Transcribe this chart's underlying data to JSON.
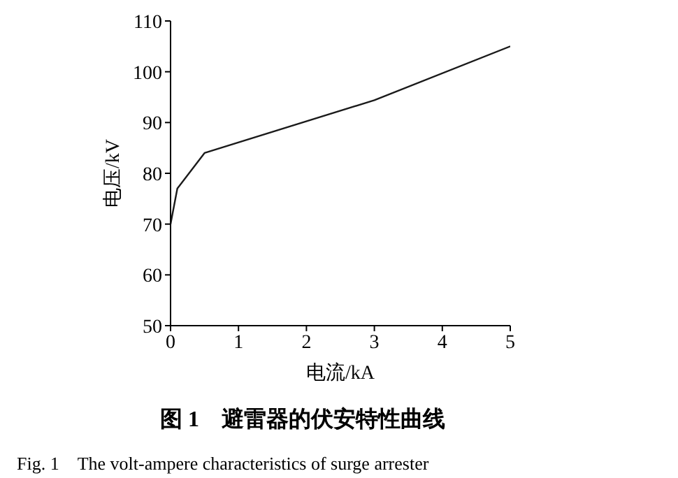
{
  "chart_data": {
    "type": "line",
    "title": "图 1　避雷器的伏安特性曲线",
    "subtitle": "Fig. 1　The volt-ampere characteristics of surge arrester",
    "xlabel": "电流/kA",
    "ylabel": "电压/kV",
    "x": [
      0,
      0.1,
      0.5,
      3,
      5
    ],
    "series": [
      {
        "color": "#1a1a1a",
        "values": [
          70,
          77,
          84,
          94.4,
          105
        ]
      }
    ],
    "xlim": [
      0,
      5
    ],
    "xticks": [
      0,
      1,
      2,
      3,
      4,
      5
    ],
    "ylim": [
      50,
      110
    ],
    "yticks": [
      50,
      60,
      70,
      80,
      90,
      100,
      110
    ],
    "grid": false,
    "legend": false,
    "marker": "none",
    "line_style": "solid"
  }
}
